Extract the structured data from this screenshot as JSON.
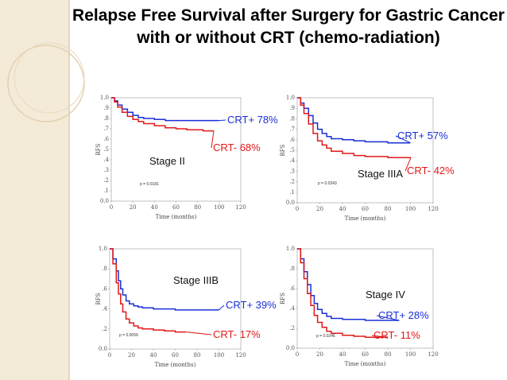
{
  "title": "Relapse Free Survival after Surgery for Gastric Cancer with or without CRT (chemo-radiation)",
  "colors": {
    "crt_plus": "#1a2fd6",
    "crt_minus": "#e01818",
    "sidebar": "#f4ead8"
  },
  "chart_data": [
    {
      "type": "line",
      "stage_label": "Stage II",
      "ylabel": "RFS",
      "xlabel": "Time (months)",
      "ylim": [
        0,
        1.0
      ],
      "xlim": [
        0,
        120
      ],
      "y_ticks": [
        "0.0",
        ".1",
        ".2",
        ".3",
        ".4",
        ".5",
        ".6",
        ".7",
        ".8",
        ".9",
        "1.0"
      ],
      "x_ticks": [
        "0",
        "20",
        "40",
        "60",
        "80",
        "100",
        "120"
      ],
      "p_value": "p = 0.0181",
      "annotations": [
        "CRT+ 78%",
        "CRT- 68%"
      ],
      "series": [
        {
          "key": "plus",
          "x": [
            0,
            3,
            6,
            10,
            15,
            20,
            25,
            30,
            40,
            50,
            60,
            80,
            100
          ],
          "y": [
            1.0,
            0.97,
            0.93,
            0.89,
            0.86,
            0.83,
            0.81,
            0.8,
            0.79,
            0.78,
            0.78,
            0.78,
            0.78
          ]
        },
        {
          "key": "minus",
          "x": [
            0,
            3,
            6,
            10,
            15,
            20,
            25,
            30,
            40,
            50,
            60,
            70,
            80,
            85,
            95
          ],
          "y": [
            1.0,
            0.96,
            0.91,
            0.86,
            0.82,
            0.79,
            0.77,
            0.75,
            0.73,
            0.71,
            0.7,
            0.69,
            0.69,
            0.68,
            0.68
          ]
        }
      ]
    },
    {
      "type": "line",
      "stage_label": "Stage IIIA",
      "ylabel": "RFS",
      "xlabel": "Time (months)",
      "ylim": [
        0,
        1.0
      ],
      "xlim": [
        0,
        120
      ],
      "y_ticks": [
        "0.0",
        ".1",
        ".2",
        ".3",
        ".4",
        ".5",
        ".6",
        ".7",
        ".8",
        ".9",
        "1.0"
      ],
      "x_ticks": [
        "0",
        "20",
        "40",
        "60",
        "80",
        "100",
        "120"
      ],
      "p_value": "p = 0.0343",
      "annotations": [
        "CRT+ 57%",
        "CRT- 42%"
      ],
      "series": [
        {
          "key": "plus",
          "x": [
            0,
            3,
            6,
            10,
            14,
            18,
            22,
            26,
            30,
            40,
            50,
            60,
            80,
            100
          ],
          "y": [
            1.0,
            0.95,
            0.9,
            0.83,
            0.76,
            0.7,
            0.66,
            0.63,
            0.61,
            0.6,
            0.59,
            0.58,
            0.57,
            0.57
          ]
        },
        {
          "key": "minus",
          "x": [
            0,
            3,
            6,
            10,
            14,
            18,
            22,
            26,
            30,
            40,
            50,
            60,
            80,
            100
          ],
          "y": [
            1.0,
            0.93,
            0.85,
            0.75,
            0.66,
            0.59,
            0.55,
            0.52,
            0.49,
            0.47,
            0.45,
            0.44,
            0.43,
            0.42
          ]
        }
      ]
    },
    {
      "type": "line",
      "stage_label": "Stage IIIB",
      "ylabel": "RFS",
      "xlabel": "Time (months)",
      "ylim": [
        0,
        1.0
      ],
      "xlim": [
        0,
        120
      ],
      "y_ticks": [
        "0.0",
        ".2",
        ".4",
        ".6",
        ".8",
        "1.0"
      ],
      "x_ticks": [
        "0",
        "20",
        "40",
        "60",
        "80",
        "100",
        "120"
      ],
      "p_value": "p = 0.0056",
      "annotations": [
        "CRT+ 39%",
        "CRT- 17%"
      ],
      "series": [
        {
          "key": "plus",
          "x": [
            0,
            3,
            6,
            8,
            10,
            12,
            15,
            18,
            22,
            26,
            30,
            40,
            60,
            80,
            100
          ],
          "y": [
            1.0,
            0.9,
            0.78,
            0.68,
            0.6,
            0.54,
            0.48,
            0.45,
            0.43,
            0.42,
            0.41,
            0.4,
            0.39,
            0.39,
            0.39
          ]
        },
        {
          "key": "minus",
          "x": [
            0,
            3,
            6,
            8,
            10,
            12,
            15,
            18,
            22,
            26,
            30,
            40,
            50,
            60,
            70
          ],
          "y": [
            1.0,
            0.85,
            0.66,
            0.55,
            0.45,
            0.37,
            0.3,
            0.26,
            0.23,
            0.21,
            0.2,
            0.19,
            0.18,
            0.17,
            0.17
          ]
        }
      ]
    },
    {
      "type": "line",
      "stage_label": "Stage IV",
      "ylabel": "RFS",
      "xlabel": "Time (months)",
      "ylim": [
        0,
        1.0
      ],
      "xlim": [
        0,
        120
      ],
      "y_ticks": [
        "0.0",
        ".2",
        ".4",
        ".6",
        ".8",
        "1.0"
      ],
      "x_ticks": [
        "0",
        "20",
        "40",
        "60",
        "80",
        "100",
        "120"
      ],
      "p_value": "p = 0.0246",
      "annotations": [
        "CRT+ 28%",
        "CRT- 11%"
      ],
      "series": [
        {
          "key": "plus",
          "x": [
            0,
            3,
            6,
            9,
            12,
            15,
            18,
            22,
            26,
            30,
            40,
            50,
            60,
            70,
            90
          ],
          "y": [
            1.0,
            0.9,
            0.77,
            0.64,
            0.53,
            0.45,
            0.39,
            0.35,
            0.32,
            0.3,
            0.29,
            0.29,
            0.28,
            0.28,
            0.28
          ]
        },
        {
          "key": "minus",
          "x": [
            0,
            3,
            6,
            9,
            12,
            15,
            18,
            22,
            26,
            30,
            40,
            50,
            60,
            70,
            80
          ],
          "y": [
            1.0,
            0.86,
            0.7,
            0.55,
            0.43,
            0.33,
            0.26,
            0.21,
            0.17,
            0.15,
            0.13,
            0.12,
            0.11,
            0.11,
            0.11
          ]
        }
      ]
    }
  ]
}
